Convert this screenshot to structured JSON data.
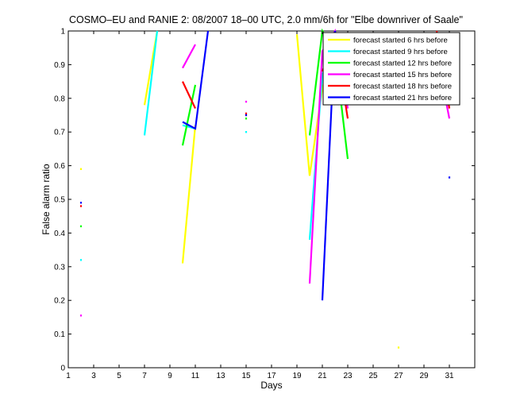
{
  "chart_data": {
    "type": "line",
    "title": "COSMO–EU and RANIE 2: 08/2007 18–00 UTC, 2.0 mm/6h for \"Elbe downriver of Saale\"",
    "xlabel": "Days",
    "ylabel": "False alarm ratio",
    "xlim": [
      1,
      33
    ],
    "ylim": [
      0,
      1
    ],
    "xticks": [
      "1",
      "3",
      "5",
      "7",
      "9",
      "11",
      "13",
      "15",
      "17",
      "19",
      "21",
      "23",
      "25",
      "27",
      "29",
      "31"
    ],
    "yticks": [
      "0",
      "0.1",
      "0.2",
      "0.3",
      "0.4",
      "0.5",
      "0.6",
      "0.7",
      "0.8",
      "0.9",
      "1"
    ],
    "grid": false,
    "legend_position": "top-right",
    "series": [
      {
        "name": "forecast started 6 hrs before",
        "color": "#ffff00",
        "points": [
          [
            2,
            0.59
          ],
          [
            7,
            0.78
          ],
          [
            8,
            1.0
          ],
          [
            10,
            0.31
          ],
          [
            11,
            0.72
          ],
          [
            15,
            0.75
          ],
          [
            19,
            0.99
          ],
          [
            20,
            0.57
          ],
          [
            21,
            0.83
          ],
          [
            22,
            0.96
          ],
          [
            23,
            0.78
          ],
          [
            27,
            0.06
          ],
          [
            30,
            0.96
          ],
          [
            31,
            0.85
          ]
        ]
      },
      {
        "name": "forecast started 9 hrs before",
        "color": "#00ffff",
        "points": [
          [
            2,
            0.32
          ],
          [
            7,
            0.69
          ],
          [
            8,
            1.0
          ],
          [
            10,
            0.72
          ],
          [
            11,
            0.71
          ],
          [
            15,
            0.7
          ],
          [
            20,
            0.38
          ],
          [
            21,
            0.87
          ],
          [
            22,
            0.97
          ],
          [
            23,
            0.79
          ],
          [
            30,
            0.95
          ],
          [
            31,
            0.8
          ]
        ]
      },
      {
        "name": "forecast started 12 hrs before",
        "color": "#00ff00",
        "points": [
          [
            2,
            0.42
          ],
          [
            10,
            0.66
          ],
          [
            11,
            0.84
          ],
          [
            15,
            0.74
          ],
          [
            20,
            0.69
          ],
          [
            21,
            1.0
          ],
          [
            22,
            0.94
          ],
          [
            23,
            0.62
          ],
          [
            30,
            0.95
          ],
          [
            31,
            0.8
          ]
        ]
      },
      {
        "name": "forecast started 15 hrs before",
        "color": "#ff00ff",
        "points": [
          [
            2,
            0.155
          ],
          [
            10,
            0.89
          ],
          [
            11,
            0.96
          ],
          [
            15,
            0.79
          ],
          [
            20,
            0.25
          ],
          [
            21,
            0.94
          ],
          [
            22,
            1.0
          ],
          [
            23,
            0.77
          ],
          [
            30,
            0.93
          ],
          [
            31,
            0.74
          ]
        ]
      },
      {
        "name": "forecast started 18 hrs before",
        "color": "#ff0000",
        "points": [
          [
            2,
            0.48
          ],
          [
            10,
            0.85
          ],
          [
            11,
            0.77
          ],
          [
            15,
            0.755
          ],
          [
            21,
            0.88
          ],
          [
            22,
            0.98
          ],
          [
            23,
            0.74
          ],
          [
            30,
            1.0
          ],
          [
            31,
            0.77
          ]
        ]
      },
      {
        "name": "forecast started 21 hrs before",
        "color": "#0000ff",
        "points": [
          [
            2,
            0.49
          ],
          [
            10,
            0.73
          ],
          [
            11,
            0.71
          ],
          [
            12,
            1.0
          ],
          [
            15,
            0.75
          ],
          [
            21,
            0.2
          ],
          [
            22,
            1.0
          ],
          [
            23,
            0.81
          ],
          [
            31,
            0.565
          ]
        ]
      }
    ]
  }
}
